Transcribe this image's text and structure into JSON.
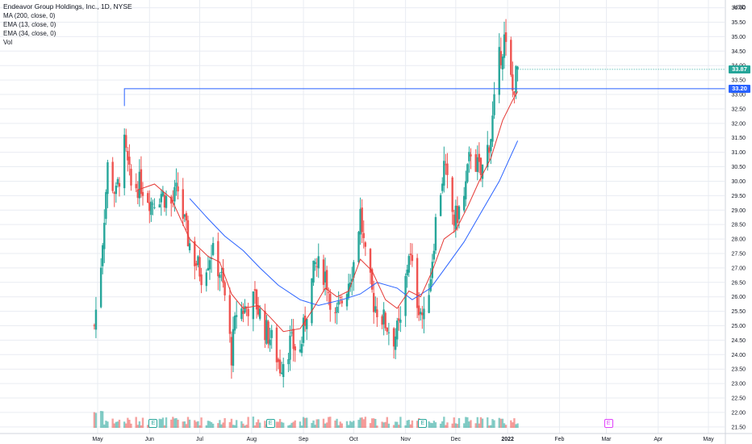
{
  "legend": {
    "title": "Endeavor Group Holdings, Inc., 1D, NYSE",
    "line1": "MA (200, close, 0)",
    "line2": "EMA (13, close, 0)",
    "line3": "EMA (34, close, 0)",
    "line4": "Vol"
  },
  "axis": {
    "currency": "USD",
    "current_price_label": "33.87",
    "level_label": "33.20"
  },
  "events": [
    {
      "label": "E",
      "month": "Jun",
      "type": "earnings"
    },
    {
      "label": "E",
      "month": "Aug",
      "type": "earnings"
    },
    {
      "label": "E",
      "month": "Nov",
      "type": "earnings"
    },
    {
      "label": "E",
      "month": "Mar",
      "type": "upcoming-earnings"
    }
  ],
  "colors": {
    "up": "#26a69a",
    "down": "#ef5350",
    "ema13": "#e53935",
    "ema34": "#2962ff",
    "level_line": "#2962ff",
    "grid": "#e9ecf2",
    "current_tag": "#26a69a",
    "level_tag": "#2962ff",
    "upcoming_event": "#e040fb",
    "earnings_event": "#26a69a"
  },
  "chart_data": {
    "type": "candlestick",
    "title": "Endeavor Group Holdings, Inc., 1D, NYSE",
    "x_tick_labels": [
      "May",
      "Jun",
      "Jul",
      "Aug",
      "Sep",
      "Oct",
      "Nov",
      "Dec",
      "2022",
      "Feb",
      "Mar",
      "Apr",
      "May"
    ],
    "y_tick_labels": [
      "21.50",
      "22.00",
      "22.50",
      "23.00",
      "23.50",
      "24.00",
      "24.50",
      "25.00",
      "25.50",
      "26.00",
      "26.50",
      "27.00",
      "27.50",
      "28.00",
      "28.50",
      "29.00",
      "29.50",
      "30.00",
      "30.50",
      "31.00",
      "31.50",
      "32.00",
      "32.50",
      "33.00",
      "33.50",
      "34.00",
      "34.50",
      "35.00",
      "35.50",
      "36.00"
    ],
    "ylim": [
      21.3,
      36.1
    ],
    "horizontal_level": 33.2,
    "last_price": 33.87,
    "price_path": [
      {
        "date": "2021-04-29",
        "close": 25.0
      },
      {
        "date": "2021-05-03",
        "close": 27.2
      },
      {
        "date": "2021-05-07",
        "close": 30.5
      },
      {
        "date": "2021-05-12",
        "close": 29.5
      },
      {
        "date": "2021-05-17",
        "close": 31.2
      },
      {
        "date": "2021-05-21",
        "close": 29.8
      },
      {
        "date": "2021-05-27",
        "close": 29.9
      },
      {
        "date": "2021-06-02",
        "close": 29.3
      },
      {
        "date": "2021-06-08",
        "close": 29.6
      },
      {
        "date": "2021-06-14",
        "close": 29.2
      },
      {
        "date": "2021-06-18",
        "close": 29.7
      },
      {
        "date": "2021-06-23",
        "close": 28.2
      },
      {
        "date": "2021-06-28",
        "close": 27.3
      },
      {
        "date": "2021-07-02",
        "close": 26.8
      },
      {
        "date": "2021-07-08",
        "close": 27.6
      },
      {
        "date": "2021-07-13",
        "close": 26.9
      },
      {
        "date": "2021-07-16",
        "close": 26.0
      },
      {
        "date": "2021-07-20",
        "close": 24.0
      },
      {
        "date": "2021-07-23",
        "close": 25.5
      },
      {
        "date": "2021-07-28",
        "close": 25.6
      },
      {
        "date": "2021-08-03",
        "close": 25.9
      },
      {
        "date": "2021-08-09",
        "close": 24.9
      },
      {
        "date": "2021-08-13",
        "close": 24.5
      },
      {
        "date": "2021-08-18",
        "close": 23.6
      },
      {
        "date": "2021-08-24",
        "close": 24.4
      },
      {
        "date": "2021-08-30",
        "close": 24.1
      },
      {
        "date": "2021-09-03",
        "close": 25.6
      },
      {
        "date": "2021-09-08",
        "close": 27.1
      },
      {
        "date": "2021-09-14",
        "close": 26.8
      },
      {
        "date": "2021-09-20",
        "close": 25.2
      },
      {
        "date": "2021-09-27",
        "close": 26.4
      },
      {
        "date": "2021-10-01",
        "close": 27.2
      },
      {
        "date": "2021-10-05",
        "close": 28.9
      },
      {
        "date": "2021-10-08",
        "close": 27.3
      },
      {
        "date": "2021-10-13",
        "close": 25.8
      },
      {
        "date": "2021-10-19",
        "close": 25.2
      },
      {
        "date": "2021-10-25",
        "close": 24.6
      },
      {
        "date": "2021-10-29",
        "close": 25.0
      },
      {
        "date": "2021-11-03",
        "close": 27.6
      },
      {
        "date": "2021-11-08",
        "close": 25.9
      },
      {
        "date": "2021-11-12",
        "close": 25.2
      },
      {
        "date": "2021-11-16",
        "close": 26.8
      },
      {
        "date": "2021-11-19",
        "close": 28.6
      },
      {
        "date": "2021-11-24",
        "close": 30.5
      },
      {
        "date": "2021-11-30",
        "close": 28.6
      },
      {
        "date": "2021-12-06",
        "close": 29.4
      },
      {
        "date": "2021-12-10",
        "close": 31.1
      },
      {
        "date": "2021-12-16",
        "close": 30.2
      },
      {
        "date": "2021-12-22",
        "close": 31.6
      },
      {
        "date": "2021-12-27",
        "close": 34.2
      },
      {
        "date": "2021-12-30",
        "close": 34.9
      },
      {
        "date": "2022-01-04",
        "close": 33.1
      },
      {
        "date": "2022-01-07",
        "close": 33.87
      }
    ],
    "ema13_path": [
      {
        "date": "2021-05-25",
        "value": 29.7
      },
      {
        "date": "2021-06-04",
        "value": 29.9
      },
      {
        "date": "2021-06-14",
        "value": 29.4
      },
      {
        "date": "2021-06-25",
        "value": 28.0
      },
      {
        "date": "2021-07-06",
        "value": 27.4
      },
      {
        "date": "2021-07-13",
        "value": 27.2
      },
      {
        "date": "2021-07-20",
        "value": 26.1
      },
      {
        "date": "2021-07-27",
        "value": 25.6
      },
      {
        "date": "2021-08-05",
        "value": 25.7
      },
      {
        "date": "2021-08-12",
        "value": 25.3
      },
      {
        "date": "2021-08-20",
        "value": 24.8
      },
      {
        "date": "2021-08-30",
        "value": 24.9
      },
      {
        "date": "2021-09-07",
        "value": 25.6
      },
      {
        "date": "2021-09-14",
        "value": 26.3
      },
      {
        "date": "2021-09-21",
        "value": 26.0
      },
      {
        "date": "2021-09-28",
        "value": 26.2
      },
      {
        "date": "2021-10-05",
        "value": 27.3
      },
      {
        "date": "2021-10-12",
        "value": 26.9
      },
      {
        "date": "2021-10-20",
        "value": 25.9
      },
      {
        "date": "2021-10-27",
        "value": 25.6
      },
      {
        "date": "2021-11-03",
        "value": 26.2
      },
      {
        "date": "2021-11-10",
        "value": 26.0
      },
      {
        "date": "2021-11-17",
        "value": 26.9
      },
      {
        "date": "2021-11-24",
        "value": 28.0
      },
      {
        "date": "2021-12-01",
        "value": 28.3
      },
      {
        "date": "2021-12-08",
        "value": 29.1
      },
      {
        "date": "2021-12-15",
        "value": 30.0
      },
      {
        "date": "2021-12-22",
        "value": 30.8
      },
      {
        "date": "2021-12-29",
        "value": 32.1
      },
      {
        "date": "2022-01-04",
        "value": 32.8
      },
      {
        "date": "2022-01-07",
        "value": 33.1
      }
    ],
    "ema34_path": [
      {
        "date": "2021-06-25",
        "value": 29.4
      },
      {
        "date": "2021-07-06",
        "value": 28.7
      },
      {
        "date": "2021-07-16",
        "value": 28.1
      },
      {
        "date": "2021-07-27",
        "value": 27.6
      },
      {
        "date": "2021-08-06",
        "value": 27.0
      },
      {
        "date": "2021-08-17",
        "value": 26.4
      },
      {
        "date": "2021-08-30",
        "value": 25.9
      },
      {
        "date": "2021-09-10",
        "value": 25.7
      },
      {
        "date": "2021-09-24",
        "value": 25.9
      },
      {
        "date": "2021-10-05",
        "value": 26.1
      },
      {
        "date": "2021-10-15",
        "value": 26.5
      },
      {
        "date": "2021-10-27",
        "value": 26.3
      },
      {
        "date": "2021-11-05",
        "value": 25.9
      },
      {
        "date": "2021-11-16",
        "value": 26.3
      },
      {
        "date": "2021-11-26",
        "value": 27.1
      },
      {
        "date": "2021-12-06",
        "value": 27.9
      },
      {
        "date": "2021-12-16",
        "value": 28.9
      },
      {
        "date": "2021-12-27",
        "value": 30.0
      },
      {
        "date": "2022-01-07",
        "value": 31.4
      }
    ],
    "xlabel": "",
    "ylabel": ""
  }
}
